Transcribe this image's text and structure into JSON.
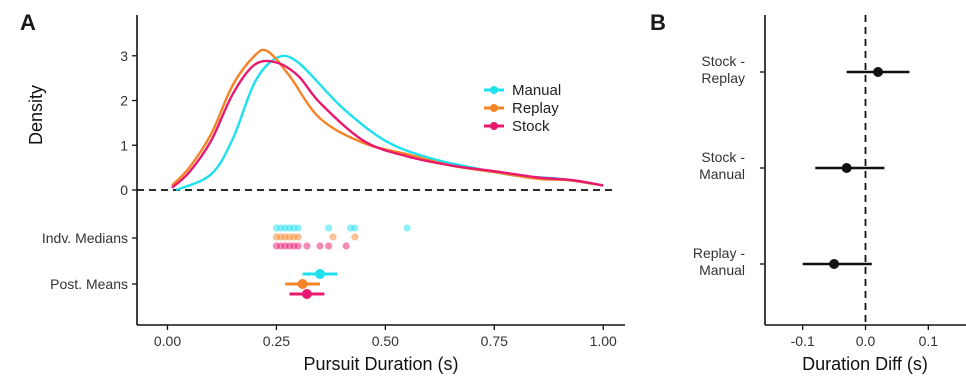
{
  "chart_data": [
    {
      "panel": "A",
      "type": "line",
      "xlabel": "Pursuit Duration (s)",
      "ylabel": "Density",
      "xlim": [
        -0.07,
        1.05
      ],
      "ylim": [
        0,
        3.8
      ],
      "xticks": [
        "0.00",
        "0.25",
        "0.50",
        "0.75",
        "1.00"
      ],
      "xtick_values": [
        0,
        0.25,
        0.5,
        0.75,
        1.0
      ],
      "yticks": [
        "0",
        "1",
        "2",
        "3"
      ],
      "ytick_values": [
        0,
        1,
        2,
        3
      ],
      "legend": {
        "placement": "top-right"
      },
      "reference_line": {
        "y": 0,
        "style": "dashed"
      },
      "series": [
        {
          "name": "Manual",
          "color": "#1ee0ee",
          "x": [
            0.02,
            0.1,
            0.15,
            0.2,
            0.25,
            0.3,
            0.4,
            0.5,
            0.6,
            0.7,
            0.8,
            0.9,
            1.0
          ],
          "y": [
            0,
            0.35,
            1.15,
            2.4,
            2.95,
            2.85,
            1.85,
            1.1,
            0.72,
            0.5,
            0.32,
            0.25,
            0.1
          ],
          "indv_medians": [
            0.25,
            0.26,
            0.27,
            0.28,
            0.29,
            0.3,
            0.37,
            0.42,
            0.43,
            0.55
          ],
          "post_mean": 0.35,
          "post_ci": [
            0.31,
            0.39
          ]
        },
        {
          "name": "Replay",
          "color": "#f58427",
          "x": [
            0.01,
            0.05,
            0.1,
            0.15,
            0.2,
            0.23,
            0.28,
            0.35,
            0.45,
            0.55,
            0.65,
            0.75,
            0.85,
            0.92,
            1.0
          ],
          "y": [
            0.1,
            0.5,
            1.25,
            2.35,
            3.0,
            3.1,
            2.55,
            1.6,
            1.05,
            0.8,
            0.55,
            0.4,
            0.25,
            0.22,
            0.1
          ],
          "indv_medians": [
            0.25,
            0.26,
            0.27,
            0.28,
            0.29,
            0.3,
            0.38,
            0.43
          ],
          "post_mean": 0.31,
          "post_ci": [
            0.27,
            0.35
          ]
        },
        {
          "name": "Stock",
          "color": "#e8186e",
          "x": [
            0.01,
            0.05,
            0.1,
            0.15,
            0.2,
            0.25,
            0.3,
            0.35,
            0.45,
            0.55,
            0.65,
            0.75,
            0.85,
            0.93,
            1.0
          ],
          "y": [
            0.05,
            0.4,
            1.1,
            2.15,
            2.8,
            2.85,
            2.55,
            1.95,
            1.1,
            0.75,
            0.55,
            0.42,
            0.28,
            0.22,
            0.1
          ],
          "indv_medians": [
            0.25,
            0.26,
            0.27,
            0.28,
            0.29,
            0.3,
            0.32,
            0.35,
            0.37,
            0.41
          ],
          "post_mean": 0.32,
          "post_ci": [
            0.28,
            0.36
          ]
        }
      ],
      "category_rows": [
        "Indv. Medians",
        "Post. Means"
      ]
    },
    {
      "panel": "B",
      "type": "scatter",
      "xlabel": "Duration Diff (s)",
      "ylabel": "",
      "xlim": [
        -0.16,
        0.16
      ],
      "xticks": [
        "-0.1",
        "0.0",
        "0.1"
      ],
      "xtick_values": [
        -0.1,
        0.0,
        0.1
      ],
      "reference_line": {
        "x": 0,
        "style": "dashed"
      },
      "categories": [
        "Stock -\nReplay",
        "Stock -\nManual",
        "Replay -\nManual"
      ],
      "category_lines": [
        [
          "Stock -",
          "Replay"
        ],
        [
          "Stock -",
          "Manual"
        ],
        [
          "Replay -",
          "Manual"
        ]
      ],
      "estimates": [
        0.02,
        -0.03,
        -0.05
      ],
      "ci_low": [
        -0.03,
        -0.08,
        -0.1
      ],
      "ci_high": [
        0.07,
        0.03,
        0.01
      ]
    }
  ]
}
